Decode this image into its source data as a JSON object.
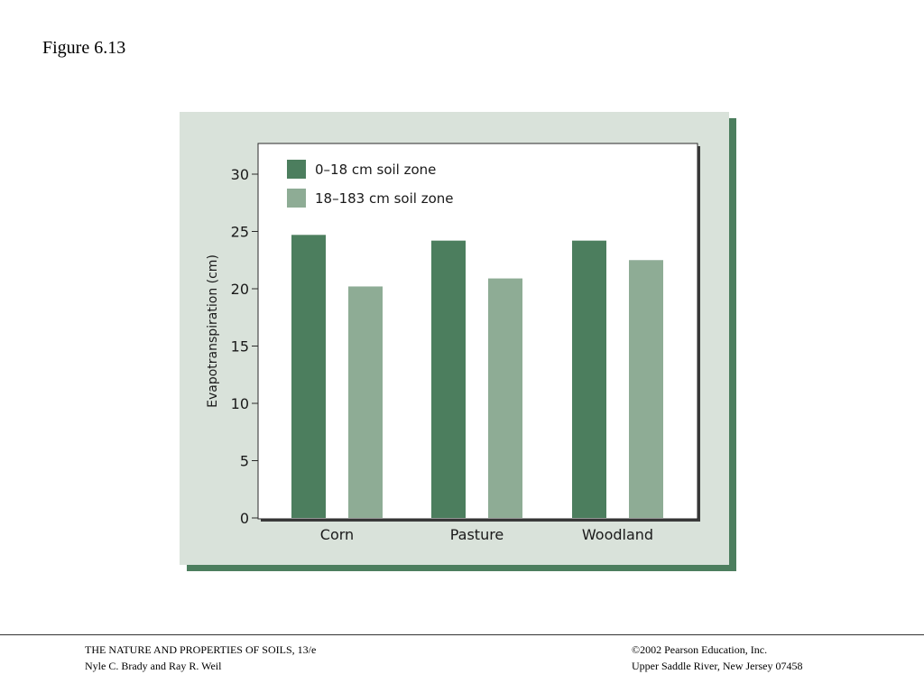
{
  "figure": {
    "label": "Figure 6.13"
  },
  "chart_data": {
    "type": "bar",
    "categories": [
      "Corn",
      "Pasture",
      "Woodland"
    ],
    "series": [
      {
        "name": "0–18 cm soil zone",
        "values": [
          24.7,
          24.2,
          24.2
        ],
        "color": "#4c7e5e"
      },
      {
        "name": "18–183 cm soil zone",
        "values": [
          20.2,
          20.9,
          22.5
        ],
        "color": "#8eac95"
      }
    ],
    "title": "",
    "xlabel": "",
    "ylabel": "Evapotranspiration (cm)",
    "ylim": [
      0,
      32.5
    ],
    "yticks": [
      0,
      5,
      10,
      15,
      20,
      25,
      30
    ],
    "grid": false,
    "legend": "top-left",
    "colors": {
      "panel": "#d9e2da",
      "shadow": "#4c7e5e",
      "plot_bg": "#ffffff"
    }
  },
  "footer": {
    "left_line1": "THE NATURE AND PROPERTIES OF SOILS, 13/e",
    "left_line2": "Nyle C. Brady and Ray R. Weil",
    "right_line1": "©2002 Pearson Education, Inc.",
    "right_line2": "Upper Saddle River, New Jersey  07458"
  }
}
